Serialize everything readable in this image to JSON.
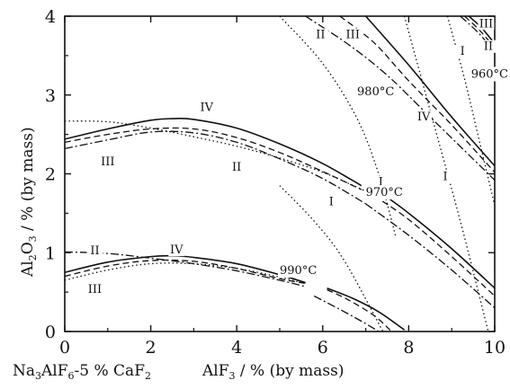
{
  "chart_data": {
    "type": "line",
    "xlim": [
      0,
      10
    ],
    "ylim": [
      0,
      4
    ],
    "xticks": [
      0,
      2,
      4,
      6,
      8,
      10
    ],
    "yticks": [
      0,
      1,
      2,
      3,
      4
    ],
    "xlabel_left": "Na3AlF6-5 % CaF2",
    "xlabel": "AlF3 / % (by mass)",
    "ylabel": "Al2O3 / % (by mass)",
    "grid": false,
    "legend": "none",
    "series": [
      {
        "style": "solid",
        "points": [
          [
            0,
            2.44
          ],
          [
            1,
            2.57
          ],
          [
            2,
            2.68
          ],
          [
            2.5,
            2.7
          ],
          [
            3,
            2.69
          ],
          [
            4,
            2.58
          ],
          [
            5,
            2.38
          ],
          [
            6,
            2.13
          ],
          [
            6.9,
            1.85
          ]
        ]
      },
      {
        "style": "dashed",
        "points": [
          [
            0,
            2.4
          ],
          [
            1,
            2.5
          ],
          [
            2,
            2.57
          ],
          [
            3,
            2.57
          ],
          [
            4,
            2.46
          ],
          [
            5,
            2.27
          ],
          [
            6,
            2.03
          ],
          [
            6.9,
            1.8
          ]
        ]
      },
      {
        "style": "dashdot",
        "points": [
          [
            0,
            2.32
          ],
          [
            1,
            2.43
          ],
          [
            2,
            2.53
          ],
          [
            3,
            2.52
          ],
          [
            4,
            2.4
          ],
          [
            5,
            2.19
          ],
          [
            6,
            1.94
          ],
          [
            7,
            1.62
          ]
        ]
      },
      {
        "style": "dotted",
        "points": [
          [
            0,
            2.67
          ],
          [
            1,
            2.66
          ],
          [
            2,
            2.58
          ],
          [
            3,
            2.47
          ],
          [
            4,
            2.35
          ],
          [
            5,
            2.2
          ],
          [
            6,
            2.02
          ],
          [
            7,
            1.78
          ]
        ]
      },
      {
        "style": "solid",
        "points": [
          [
            0,
            0.75
          ],
          [
            1,
            0.88
          ],
          [
            2,
            0.95
          ],
          [
            2.5,
            0.96
          ],
          [
            3,
            0.94
          ],
          [
            4,
            0.86
          ],
          [
            5,
            0.72
          ],
          [
            5.6,
            0.62
          ]
        ]
      },
      {
        "style": "dashed",
        "points": [
          [
            0,
            0.7
          ],
          [
            1,
            0.83
          ],
          [
            2,
            0.9
          ],
          [
            3,
            0.89
          ],
          [
            4,
            0.8
          ],
          [
            5,
            0.67
          ],
          [
            5.6,
            0.61
          ]
        ]
      },
      {
        "style": "dashdot",
        "points": [
          [
            0,
            1.01
          ],
          [
            1,
            0.99
          ],
          [
            2,
            0.93
          ],
          [
            3,
            0.86
          ],
          [
            4,
            0.77
          ],
          [
            5,
            0.65
          ],
          [
            5.6,
            0.57
          ]
        ]
      },
      {
        "style": "dotted",
        "points": [
          [
            0,
            0.65
          ],
          [
            1,
            0.78
          ],
          [
            2,
            0.86
          ],
          [
            3,
            0.86
          ],
          [
            4,
            0.8
          ],
          [
            5,
            0.69
          ],
          [
            5.5,
            0.62
          ]
        ]
      },
      {
        "style": "solid",
        "points": [
          [
            6.1,
            0.55
          ],
          [
            6.7,
            0.42
          ],
          [
            7.3,
            0.25
          ],
          [
            7.9,
            0.02
          ]
        ]
      },
      {
        "style": "dashed",
        "points": [
          [
            6.1,
            0.53
          ],
          [
            6.6,
            0.4
          ],
          [
            7.2,
            0.2
          ],
          [
            7.6,
            0.0
          ]
        ]
      },
      {
        "style": "dashdot",
        "points": [
          [
            5.8,
            0.45
          ],
          [
            6.4,
            0.28
          ],
          [
            7.0,
            0.1
          ],
          [
            7.3,
            0.0
          ]
        ]
      },
      {
        "style": "dotted",
        "points": [
          [
            5.0,
            1.85
          ],
          [
            5.8,
            1.4
          ],
          [
            6.5,
            0.9
          ],
          [
            7.4,
            0.0
          ]
        ]
      },
      {
        "style": "solid",
        "points": [
          [
            7.3,
            1.78
          ],
          [
            8,
            1.5
          ],
          [
            9,
            1.05
          ],
          [
            10,
            0.55
          ]
        ]
      },
      {
        "style": "dashed",
        "points": [
          [
            7.2,
            1.72
          ],
          [
            8,
            1.42
          ],
          [
            9,
            0.95
          ],
          [
            10,
            0.45
          ]
        ]
      },
      {
        "style": "dashdot",
        "points": [
          [
            7.0,
            1.62
          ],
          [
            8,
            1.22
          ],
          [
            9,
            0.78
          ],
          [
            10,
            0.3
          ]
        ]
      },
      {
        "style": "dotted",
        "points": [
          [
            7.9,
            4.0
          ],
          [
            8.5,
            2.8
          ],
          [
            9.2,
            1.4
          ],
          [
            9.85,
            0.0
          ]
        ]
      },
      {
        "style": "solid",
        "points": [
          [
            7.0,
            4.0
          ],
          [
            8,
            3.38
          ],
          [
            9,
            2.72
          ],
          [
            10,
            2.1
          ]
        ]
      },
      {
        "style": "dashed",
        "points": [
          [
            6.4,
            4.0
          ],
          [
            7.2,
            3.66
          ],
          [
            8,
            3.18
          ],
          [
            9,
            2.62
          ],
          [
            10,
            2.02
          ]
        ]
      },
      {
        "style": "dashdot",
        "points": [
          [
            5.6,
            4.0
          ],
          [
            6.6,
            3.64
          ],
          [
            7.5,
            3.25
          ],
          [
            8.5,
            2.72
          ],
          [
            10,
            1.92
          ]
        ]
      },
      {
        "style": "dotted",
        "points": [
          [
            5.0,
            4.0
          ],
          [
            6,
            3.4
          ],
          [
            6.8,
            2.7
          ],
          [
            7.3,
            2.0
          ],
          [
            7.7,
            1.2
          ]
        ]
      },
      {
        "style": "solid",
        "points": [
          [
            9.4,
            4.0
          ],
          [
            9.7,
            3.85
          ],
          [
            10,
            3.65
          ]
        ]
      },
      {
        "style": "dashed",
        "points": [
          [
            9.3,
            4.0
          ],
          [
            9.65,
            3.82
          ],
          [
            10,
            3.6
          ]
        ]
      },
      {
        "style": "dashdot",
        "points": [
          [
            9.2,
            4.0
          ],
          [
            9.6,
            3.8
          ],
          [
            10,
            3.55
          ]
        ]
      },
      {
        "style": "dotted",
        "points": [
          [
            8.9,
            4.0
          ],
          [
            9.3,
            3.2
          ],
          [
            9.65,
            2.4
          ],
          [
            10,
            1.6
          ]
        ]
      }
    ],
    "curve_labels": [
      {
        "text": "IV",
        "x": 3.3,
        "y": 2.8
      },
      {
        "text": "III",
        "x": 1.0,
        "y": 2.11
      },
      {
        "text": "II",
        "x": 4.0,
        "y": 2.04
      },
      {
        "text": "II",
        "x": 0.7,
        "y": 0.98
      },
      {
        "text": "IV",
        "x": 2.6,
        "y": 0.99
      },
      {
        "text": "III",
        "x": 0.7,
        "y": 0.49
      },
      {
        "text": "I",
        "x": 6.2,
        "y": 1.6
      },
      {
        "text": "I",
        "x": 7.35,
        "y": 1.85
      },
      {
        "text": "I",
        "x": 8.85,
        "y": 1.92
      },
      {
        "text": "II",
        "x": 5.95,
        "y": 3.72
      },
      {
        "text": "III",
        "x": 6.7,
        "y": 3.72
      },
      {
        "text": "IV",
        "x": 8.35,
        "y": 2.68
      },
      {
        "text": "I",
        "x": 9.25,
        "y": 3.51
      },
      {
        "text": "III",
        "x": 9.8,
        "y": 3.86
      },
      {
        "text": "II",
        "x": 9.85,
        "y": 3.57
      }
    ],
    "temperature_labels": [
      {
        "text": "990°C",
        "x": 5.0,
        "y": 0.73
      },
      {
        "text": "980°C",
        "x": 6.8,
        "y": 3.0
      },
      {
        "text": "970°C",
        "x": 7.0,
        "y": 1.72
      },
      {
        "text": "960°C",
        "x": 9.45,
        "y": 3.22
      }
    ]
  }
}
